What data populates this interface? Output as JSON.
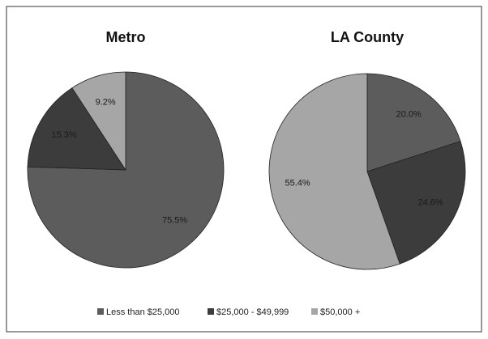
{
  "chart_data": [
    {
      "type": "pie",
      "title": "Metro",
      "values": [
        75.5,
        15.3,
        9.2
      ],
      "value_labels": [
        "75.5%",
        "15.3%",
        "9.2%"
      ]
    },
    {
      "type": "pie",
      "title": "LA County",
      "values": [
        20.0,
        24.6,
        55.4
      ],
      "value_labels": [
        "20.0%",
        "24.6%",
        "55.4%"
      ]
    }
  ],
  "legend": {
    "entries": [
      {
        "name": "Less than $25,000",
        "color": "#5c5c5c"
      },
      {
        "name": "$25,000 - $49,999",
        "color": "#3c3c3c"
      },
      {
        "name": "$50,000 +",
        "color": "#a6a6a6"
      }
    ]
  }
}
